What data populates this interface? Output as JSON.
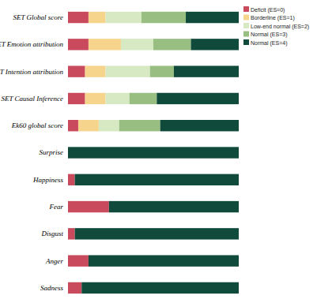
{
  "chart_data": {
    "type": "bar",
    "orientation": "horizontal",
    "stacked": true,
    "tick_labels": false,
    "legend": "top-right",
    "categories": [
      "SET Global score",
      "SET Emotion attribution",
      "SET Intention attribution",
      "SET Causal Inference",
      "Ek60 global score",
      "Surprise",
      "Happiness",
      "Fear",
      "Disgust",
      "Anger",
      "Sadness"
    ],
    "xlim": [
      0,
      100
    ],
    "series": [
      {
        "name": "Deficit (ES=0)",
        "color": "#c84a5c",
        "values": [
          12,
          12,
          10,
          10,
          6,
          0,
          4,
          24,
          4,
          12,
          8
        ]
      },
      {
        "name": "Borderline (ES=1)",
        "color": "#f6d48c",
        "values": [
          10,
          19,
          12,
          12,
          12,
          0,
          0,
          0,
          0,
          0,
          0
        ]
      },
      {
        "name": "Low-end normal (ES=2)",
        "color": "#d6e9c2",
        "values": [
          21,
          19,
          26,
          14,
          12,
          0,
          0,
          0,
          0,
          0,
          0
        ]
      },
      {
        "name": "Normal (ES=3)",
        "color": "#98be82",
        "values": [
          26,
          22,
          14,
          16,
          24,
          0,
          0,
          0,
          0,
          0,
          0
        ]
      },
      {
        "name": "Normal (ES=4)",
        "color": "#0f4a3b",
        "values": [
          31,
          28,
          38,
          48,
          46,
          100,
          96,
          76,
          96,
          88,
          92
        ]
      }
    ]
  }
}
